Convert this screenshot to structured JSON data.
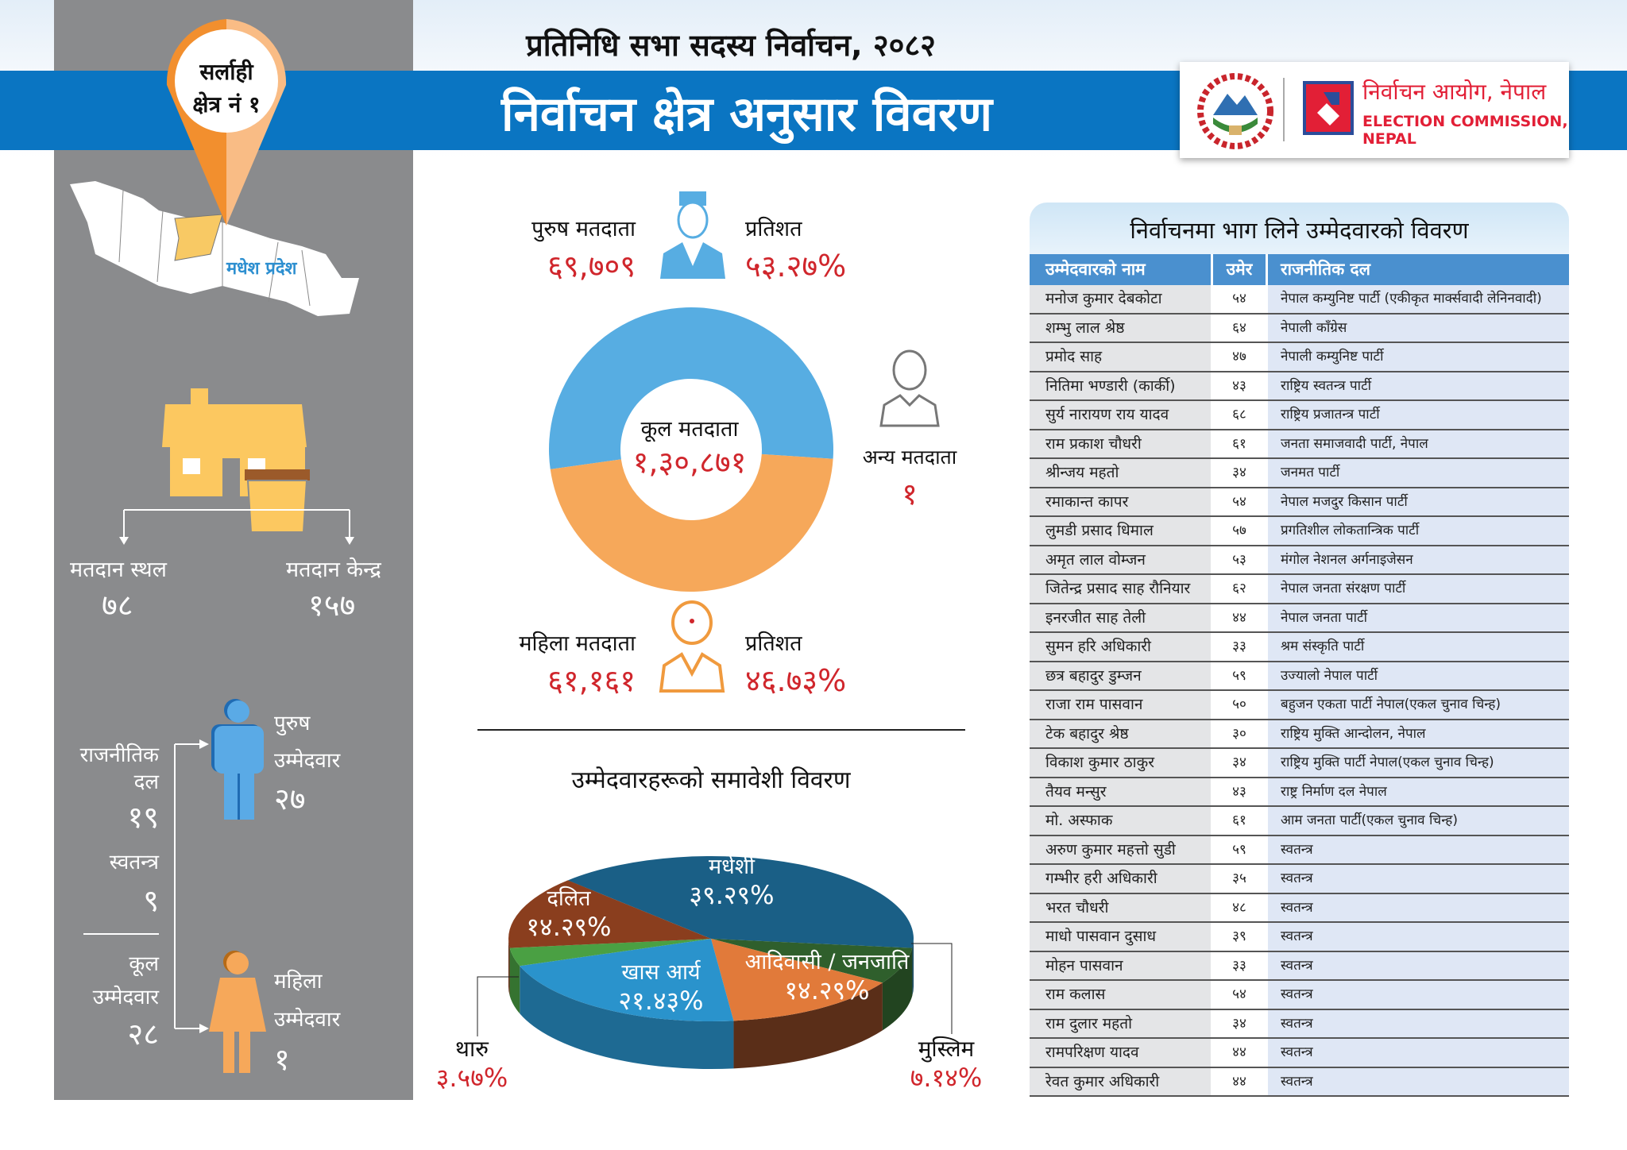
{
  "header": {
    "subtitle": "प्रतिनिधि सभा सदस्य निर्वाचन, २०८२",
    "title": "निर्वाचन क्षेत्र अनुसार विवरण",
    "logo": {
      "name_np": "निर्वाचन आयोग, नेपाल",
      "name_en": "ELECTION COMMISSION, NEPAL"
    }
  },
  "colors": {
    "band": "#0a75c2",
    "panel": "#8a8b8d",
    "accent_red": "#d0262c",
    "male": "#57ade2",
    "female": "#f6a85a"
  },
  "constituency": {
    "district": "सर्लाही",
    "number": "क्षेत्र नं १",
    "province": "मधेश प्रदेश"
  },
  "polling": {
    "stations_label": "मतदान स्थल",
    "stations": "७८",
    "centers_label": "मतदान केन्द्र",
    "centers": "१५७"
  },
  "candidates": {
    "party_label": "राजनीतिक दल",
    "party": "१९",
    "independent_label": "स्वतन्त्र",
    "independent": "९",
    "total_label_1": "कूल",
    "total_label_2": "उम्मेदवार",
    "total": "२८",
    "male_label_1": "पुरुष",
    "male_label_2": "उम्मेदवार",
    "male": "२७",
    "female_label_1": "महिला",
    "female_label_2": "उम्मेदवार",
    "female": "१"
  },
  "voters": {
    "male_label": "पुरुष मतदाता",
    "male": "६९,७०९",
    "male_pct_label": "प्रतिशत",
    "male_pct": "५३.२७%",
    "female_label": "महिला मतदाता",
    "female": "६१,१६१",
    "female_pct_label": "प्रतिशत",
    "female_pct": "४६.७३%",
    "total_label": "कूल मतदाता",
    "total": "१,३०,८७१",
    "other_label": "अन्य मतदाता",
    "other": "१"
  },
  "inclusion": {
    "title": "उम्मेदवारहरूको समावेशी विवरण"
  },
  "chart_data": [
    {
      "type": "pie",
      "variant": "donut",
      "categories": [
        "पुरुष मतदाता",
        "महिला मतदाता"
      ],
      "values": [
        69709,
        61161
      ],
      "percent": [
        53.27,
        46.73
      ],
      "colors": [
        "#57ade2",
        "#f6a85a"
      ]
    },
    {
      "type": "pie",
      "variant": "3d",
      "title": "उम्मेदवारहरूको समावेशी विवरण",
      "categories": [
        "मधेशी",
        "मुस्लिम",
        "आदिवासी / जनजाति",
        "खास आर्य",
        "थारु",
        "दलित"
      ],
      "labels": [
        "३९.२९%",
        "७.१४%",
        "१४.२९%",
        "२१.४३%",
        "३.५७%",
        "१४.२९%"
      ],
      "values": [
        39.29,
        7.14,
        14.29,
        21.43,
        3.57,
        14.29
      ],
      "colors": [
        "#1a5f86",
        "#2f5f2c",
        "#e17a3a",
        "#2a93cc",
        "#4aa043",
        "#8a3e1e"
      ]
    }
  ],
  "table": {
    "title": "निर्वाचनमा भाग लिने उम्मेदवारको विवरण",
    "headers": [
      "उम्मेदवारको नाम",
      "उमेर",
      "राजनीतिक दल"
    ],
    "rows": [
      [
        "मनोज कुमार देबकोटा",
        "५४",
        "नेपाल कम्युनिष्ट पार्टी (एकीकृत मार्क्सवादी लेनिनवादी)"
      ],
      [
        "शम्भु लाल श्रेष्ठ",
        "६४",
        "नेपाली काँग्रेस"
      ],
      [
        "प्रमोद साह",
        "४७",
        "नेपाली कम्युनिष्ट पार्टी"
      ],
      [
        "नितिमा भण्डारी (कार्की)",
        "४३",
        "राष्ट्रिय स्वतन्त्र पार्टी"
      ],
      [
        "सुर्य नारायण राय यादव",
        "६८",
        "राष्ट्रिय प्रजातन्त्र पार्टी"
      ],
      [
        "राम प्रकाश चौधरी",
        "६१",
        "जनता समाजवादी पार्टी, नेपाल"
      ],
      [
        "श्रीन्जय महतो",
        "३४",
        "जनमत पार्टी"
      ],
      [
        "रमाकान्त कापर",
        "५४",
        "नेपाल मजदुर किसान पार्टी"
      ],
      [
        "लुमडी प्रसाद धिमाल",
        "५७",
        "प्रगतिशील लोकतान्त्रिक पार्टी"
      ],
      [
        "अमृत लाल वोम्जन",
        "५३",
        "मंगोल नेशनल अर्गनाइजेसन"
      ],
      [
        "जितेन्द्र प्रसाद साह रौनियार",
        "६२",
        "नेपाल जनता संरक्षण पार्टी"
      ],
      [
        "इनरजीत साह तेली",
        "४४",
        "नेपाल जनता पार्टी"
      ],
      [
        "सुमन हरि अधिकारी",
        "३३",
        "श्रम संस्कृति पार्टी"
      ],
      [
        "छत्र बहादुर डुम्जन",
        "५९",
        "उज्यालो नेपाल पार्टी"
      ],
      [
        "राजा राम पासवान",
        "५०",
        "बहुजन एकता पार्टी नेपाल(एकल चुनाव चिन्ह)"
      ],
      [
        "टेक बहादुर श्रेष्ठ",
        "३०",
        "राष्ट्रिय मुक्ति आन्दोलन, नेपाल"
      ],
      [
        "विकाश कुमार ठाकुर",
        "३४",
        "राष्ट्रिय मुक्ति पार्टी नेपाल(एकल चुनाव चिन्ह)"
      ],
      [
        "तैयव मन्सुर",
        "४३",
        "राष्ट्र निर्माण दल नेपाल"
      ],
      [
        "मो. अस्फाक",
        "६१",
        "आम जनता पार्टी(एकल चुनाव चिन्ह)"
      ],
      [
        "अरुण कुमार महत्तो सुडी",
        "५९",
        "स्वतन्त्र"
      ],
      [
        "गम्भीर हरी अधिकारी",
        "३५",
        "स्वतन्त्र"
      ],
      [
        "भरत चौधरी",
        "४८",
        "स्वतन्त्र"
      ],
      [
        "माधो पासवान दुसाध",
        "३९",
        "स्वतन्त्र"
      ],
      [
        "मोहन पासवान",
        "३३",
        "स्वतन्त्र"
      ],
      [
        "राम कलास",
        "५४",
        "स्वतन्त्र"
      ],
      [
        "राम दुलार महतो",
        "३४",
        "स्वतन्त्र"
      ],
      [
        "रामपरिक्षण यादव",
        "४४",
        "स्वतन्त्र"
      ],
      [
        "रेवत कुमार अधिकारी",
        "४४",
        "स्वतन्त्र"
      ]
    ]
  }
}
